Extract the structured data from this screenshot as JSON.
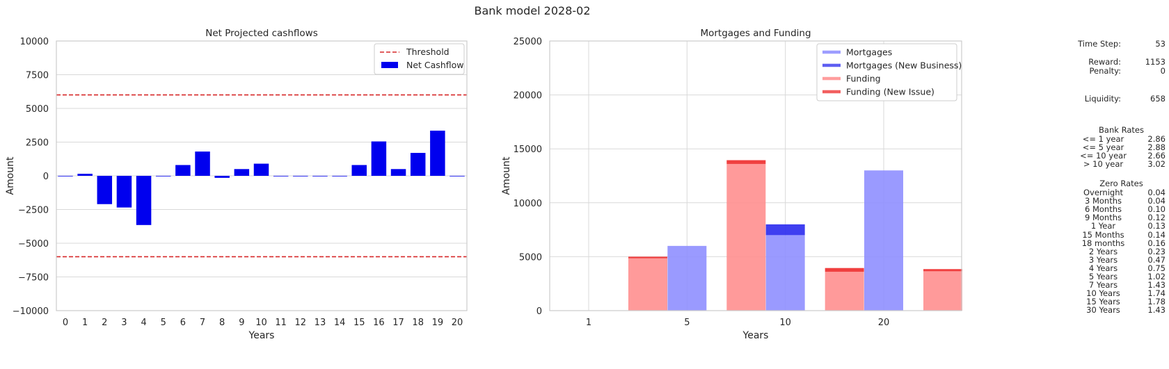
{
  "suptitle": "Bank model 2028-02",
  "chart_data": [
    {
      "type": "bar",
      "title": "Net Projected cashflows",
      "xlabel": "Years",
      "ylabel": "Amount",
      "ylim": [
        -10000,
        10000
      ],
      "yticks": [
        -10000,
        -7500,
        -5000,
        -2500,
        0,
        2500,
        5000,
        7500,
        10000
      ],
      "ytick_labels": [
        "−10000",
        "−7500",
        "−5000",
        "−2500",
        "0",
        "2500",
        "5000",
        "7500",
        "10000"
      ],
      "categories": [
        "0",
        "1",
        "2",
        "3",
        "4",
        "5",
        "6",
        "7",
        "8",
        "9",
        "10",
        "11",
        "12",
        "13",
        "14",
        "15",
        "16",
        "17",
        "18",
        "19",
        "20"
      ],
      "series": [
        {
          "name": "Net Cashflow",
          "color": "#0000ee",
          "values": [
            0,
            150,
            -2100,
            -2350,
            -3650,
            0,
            800,
            1800,
            -150,
            500,
            900,
            0,
            0,
            0,
            0,
            800,
            2550,
            500,
            1700,
            3350,
            0
          ]
        }
      ],
      "thresholds": {
        "name": "Threshold",
        "values": [
          6000,
          -6000
        ],
        "color": "#d62728"
      },
      "legend": "top-right",
      "grid": true
    },
    {
      "type": "bar",
      "title": "Mortgages and Funding",
      "xlabel": "Years",
      "ylabel": "Amount",
      "ylim": [
        0,
        25000
      ],
      "yticks": [
        0,
        5000,
        10000,
        15000,
        20000,
        25000
      ],
      "ytick_labels": [
        "0",
        "5000",
        "10000",
        "15000",
        "20000",
        "25000"
      ],
      "categories": [
        "1",
        "5",
        "10",
        "20"
      ],
      "stacked": true,
      "series": [
        {
          "name": "Mortgages",
          "color": "#8c8cff",
          "values": [
            0,
            6000,
            7000,
            13000
          ]
        },
        {
          "name": "Mortgages (New Business)",
          "color": "#2a2aee",
          "values": [
            0,
            0,
            1000,
            0
          ]
        },
        {
          "name": "Funding",
          "color": "#ff8c8c",
          "values": [
            4850,
            13600,
            3600,
            3650
          ]
        },
        {
          "name": "Funding (New Issue)",
          "color": "#ee2a2a",
          "values": [
            150,
            350,
            350,
            200
          ]
        }
      ],
      "legend": "top-right",
      "grid": true
    }
  ],
  "side_panel": {
    "time_step": {
      "label": "Time Step:",
      "value": "53"
    },
    "reward": {
      "label": "Reward:",
      "value": "1153"
    },
    "penalty": {
      "label": "Penalty:",
      "value": "0"
    },
    "liquidity": {
      "label": "Liquidity:",
      "value": "658"
    },
    "bank_rates": {
      "title": "Bank Rates",
      "rows": [
        {
          "label": "<= 1 year",
          "value": "2.86"
        },
        {
          "label": "<= 5 year",
          "value": "2.88"
        },
        {
          "label": "<= 10 year",
          "value": "2.66"
        },
        {
          "label": "> 10 year",
          "value": "3.02"
        }
      ]
    },
    "zero_rates": {
      "title": "Zero Rates",
      "rows": [
        {
          "label": "Overnight",
          "value": "0.04"
        },
        {
          "label": "3 Months",
          "value": "0.04"
        },
        {
          "label": "6 Months",
          "value": "0.10"
        },
        {
          "label": "9 Months",
          "value": "0.12"
        },
        {
          "label": "1 Year",
          "value": "0.13"
        },
        {
          "label": "15 Months",
          "value": "0.14"
        },
        {
          "label": "18 months",
          "value": "0.16"
        },
        {
          "label": "2 Years",
          "value": "0.23"
        },
        {
          "label": "3 Years",
          "value": "0.47"
        },
        {
          "label": "4 Years",
          "value": "0.75"
        },
        {
          "label": "5 Years",
          "value": "1.02"
        },
        {
          "label": "7 Years",
          "value": "1.43"
        },
        {
          "label": "10 Years",
          "value": "1.74"
        },
        {
          "label": "15 Years",
          "value": "1.78"
        },
        {
          "label": "30 Years",
          "value": "1.43"
        }
      ]
    }
  }
}
